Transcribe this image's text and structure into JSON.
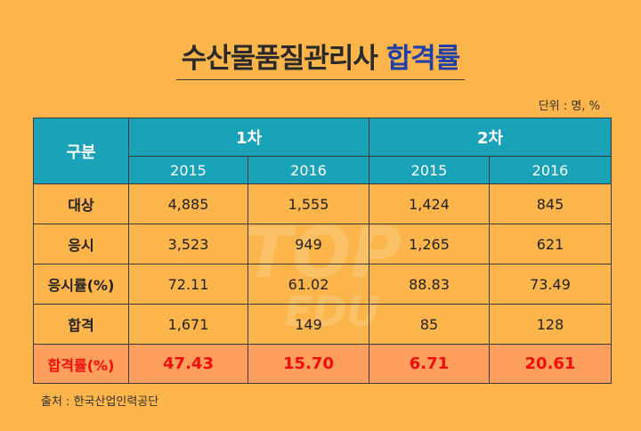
{
  "title": {
    "main": "수산물품질관리사",
    "accent": "합격률"
  },
  "unit": "단위 : 명, %",
  "header": {
    "category": "구분",
    "round1": "1차",
    "round2": "2차",
    "years": [
      "2015",
      "2016",
      "2015",
      "2016"
    ]
  },
  "rows": [
    {
      "label": "대상",
      "values": [
        "4,885",
        "1,555",
        "1,424",
        "845"
      ]
    },
    {
      "label": "응시",
      "values": [
        "3,523",
        "949",
        "1,265",
        "621"
      ]
    },
    {
      "label": "응시률(%)",
      "values": [
        "72.11",
        "61.02",
        "88.83",
        "73.49"
      ]
    },
    {
      "label": "합격",
      "values": [
        "1,671",
        "149",
        "85",
        "128"
      ]
    },
    {
      "label": "합격률(%)",
      "values": [
        "47.43",
        "15.70",
        "6.71",
        "20.61"
      ]
    }
  ],
  "watermark": {
    "line1": "TOP",
    "line2": "EDU"
  },
  "source": "출처 : 한국산업인력공단",
  "colors": {
    "background": "#fbb54a",
    "header": "#1aa3b8",
    "highlight_row": "#ff9f5e",
    "highlight_text": "#f20d0d",
    "title_accent": "#1f3fa8"
  }
}
